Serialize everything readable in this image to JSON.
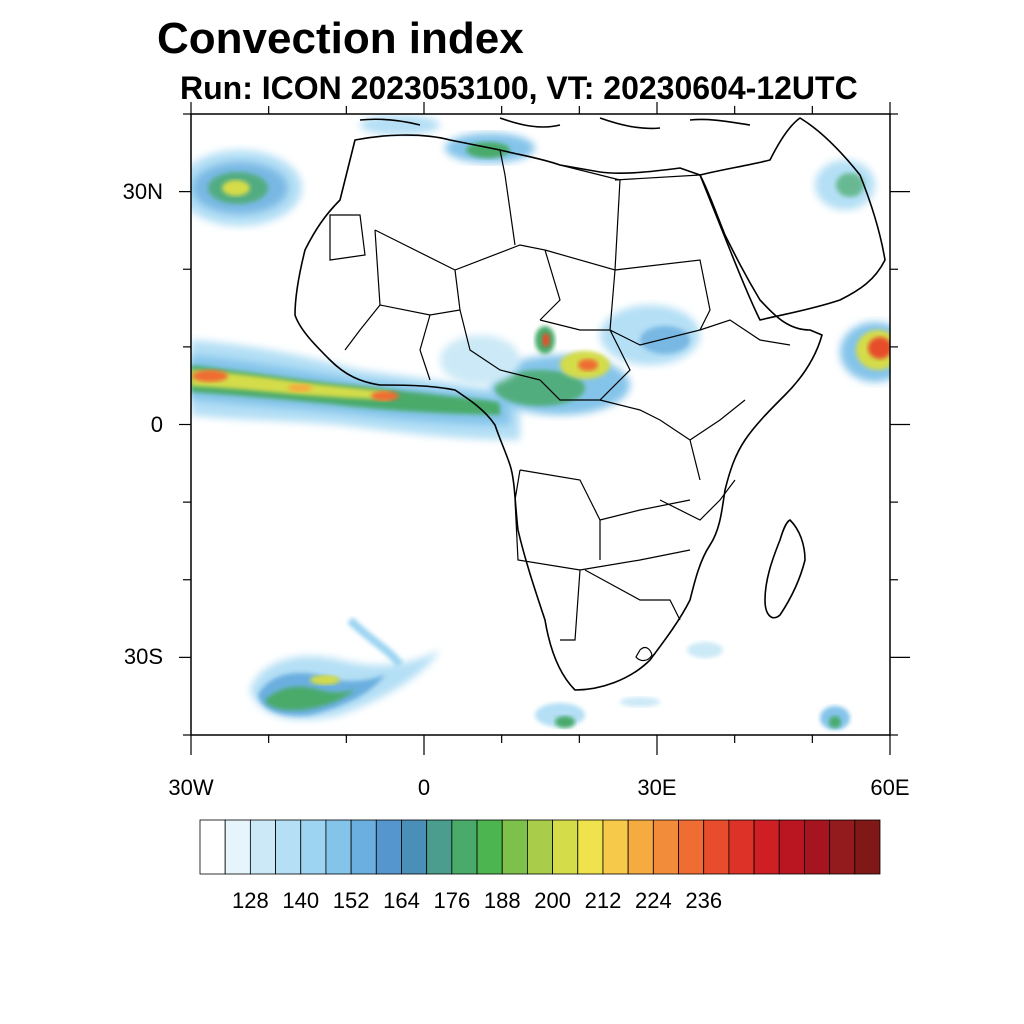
{
  "title": "Convection index",
  "subtitle": "Run: ICON 2023053100,  VT: 20230604-12UTC",
  "map": {
    "extent": {
      "lon_min": -30,
      "lon_max": 60,
      "lat_min": -40,
      "lat_max": 40
    },
    "lat_ticks": [
      {
        "label": "30N",
        "lat": 30
      },
      {
        "label": "0",
        "lat": 0
      },
      {
        "label": "30S",
        "lat": -30
      }
    ],
    "lon_ticks": [
      {
        "label": "30W",
        "lon": -30
      },
      {
        "label": "0",
        "lon": 0
      },
      {
        "label": "30E",
        "lon": 30
      },
      {
        "label": "60E",
        "lon": 60
      }
    ],
    "minor_lat_ticks": [
      -40,
      -20,
      -10,
      10,
      20,
      40
    ],
    "minor_lon_ticks": [
      -20,
      -10,
      10,
      20,
      40,
      50
    ]
  },
  "colorbar": {
    "labels": [
      "128",
      "140",
      "152",
      "164",
      "176",
      "188",
      "200",
      "212",
      "224",
      "236"
    ],
    "colors": [
      "#ffffff",
      "#e6f4fb",
      "#cce9f7",
      "#b4dff5",
      "#9cd4f2",
      "#84c4ea",
      "#6aafdf",
      "#5596ce",
      "#4a8fb8",
      "#4b9e8e",
      "#4aaa6a",
      "#4db54f",
      "#7dc14b",
      "#a9cd4a",
      "#d4dc4a",
      "#efe24c",
      "#f6c94a",
      "#f6ab41",
      "#f38c3a",
      "#ef6c33",
      "#e74d2c",
      "#dc3228",
      "#cd1f24",
      "#b91622",
      "#a6141f",
      "#931a1d",
      "#7f1817"
    ]
  }
}
